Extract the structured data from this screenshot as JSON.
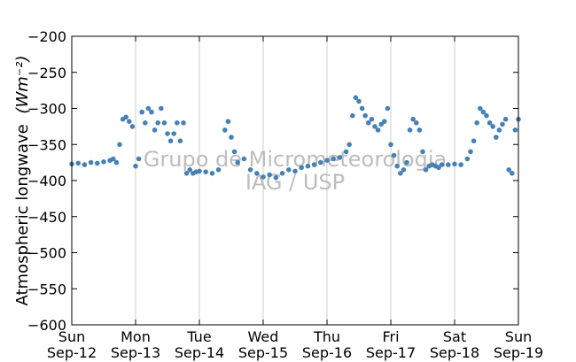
{
  "chart_data": {
    "type": "scatter",
    "title": "",
    "ylabel_text": "Atmospheric longwave",
    "ylabel_unit": "(Wm⁻²)",
    "xlabel": "",
    "ylim": [
      -600,
      -200
    ],
    "xlim": [
      0,
      7
    ],
    "y_ticks": [
      -200,
      -250,
      -300,
      -350,
      -400,
      -450,
      -500,
      -550,
      -600
    ],
    "x_ticks": [
      {
        "x": 0,
        "day": "Sun",
        "date": "Sep-12"
      },
      {
        "x": 1,
        "day": "Mon",
        "date": "Sep-13"
      },
      {
        "x": 2,
        "day": "Tue",
        "date": "Sep-14"
      },
      {
        "x": 3,
        "day": "Wed",
        "date": "Sep-15"
      },
      {
        "x": 4,
        "day": "Thu",
        "date": "Sep-16"
      },
      {
        "x": 5,
        "day": "Fri",
        "date": "Sep-17"
      },
      {
        "x": 6,
        "day": "Sat",
        "date": "Sep-18"
      },
      {
        "x": 7,
        "day": "Sun",
        "date": "Sep-19"
      }
    ],
    "grid": "vertical",
    "marker_color": "#4682b4",
    "watermark": [
      "Grupo de Micrometeorologia",
      "IAG / USP"
    ],
    "series": [
      {
        "x": [
          0.0,
          0.1,
          0.2,
          0.3,
          0.4,
          0.5,
          0.6,
          0.65,
          0.7,
          0.75,
          0.8,
          0.85,
          0.9,
          0.95,
          1.0,
          1.05,
          1.1,
          1.15,
          1.2,
          1.25,
          1.3,
          1.35,
          1.4,
          1.45,
          1.5,
          1.55,
          1.6,
          1.65,
          1.7,
          1.75,
          1.8,
          1.85,
          1.9,
          1.95,
          2.0,
          2.1,
          2.2,
          2.3,
          2.4,
          2.45,
          2.5,
          2.55,
          2.6,
          2.7,
          2.8,
          2.9,
          3.0,
          3.1,
          3.2,
          3.3,
          3.4,
          3.5,
          3.6,
          3.7,
          3.8,
          3.9,
          4.0,
          4.1,
          4.2,
          4.3,
          4.35,
          4.4,
          4.45,
          4.5,
          4.55,
          4.6,
          4.65,
          4.7,
          4.75,
          4.8,
          4.85,
          4.9,
          4.95,
          5.0,
          5.05,
          5.1,
          5.15,
          5.2,
          5.25,
          5.3,
          5.35,
          5.4,
          5.45,
          5.5,
          5.55,
          5.6,
          5.65,
          5.7,
          5.75,
          5.8,
          5.9,
          6.0,
          6.1,
          6.2,
          6.25,
          6.3,
          6.35,
          6.4,
          6.45,
          6.5,
          6.55,
          6.6,
          6.65,
          6.7,
          6.75,
          6.8,
          6.85,
          6.9,
          6.95,
          7.0
        ],
        "y": [
          -377,
          -376,
          -378,
          -375,
          -376,
          -374,
          -372,
          -370,
          -375,
          -350,
          -315,
          -312,
          -318,
          -325,
          -380,
          -370,
          -305,
          -320,
          -300,
          -305,
          -330,
          -320,
          -300,
          -320,
          -335,
          -345,
          -335,
          -320,
          -345,
          -320,
          -390,
          -385,
          -390,
          -388,
          -387,
          -388,
          -390,
          -385,
          -330,
          -318,
          -340,
          -360,
          -375,
          -370,
          -385,
          -390,
          -395,
          -392,
          -396,
          -390,
          -385,
          -387,
          -382,
          -380,
          -378,
          -375,
          -372,
          -370,
          -368,
          -360,
          -350,
          -310,
          -285,
          -290,
          -300,
          -310,
          -320,
          -315,
          -325,
          -330,
          -322,
          -318,
          -300,
          -350,
          -365,
          -380,
          -390,
          -385,
          -375,
          -330,
          -315,
          -320,
          -330,
          -360,
          -385,
          -380,
          -378,
          -380,
          -382,
          -378,
          -378,
          -377,
          -378,
          -370,
          -360,
          -345,
          -320,
          -300,
          -305,
          -310,
          -320,
          -325,
          -340,
          -330,
          -322,
          -315,
          -385,
          -390,
          -330,
          -315
        ]
      }
    ]
  }
}
